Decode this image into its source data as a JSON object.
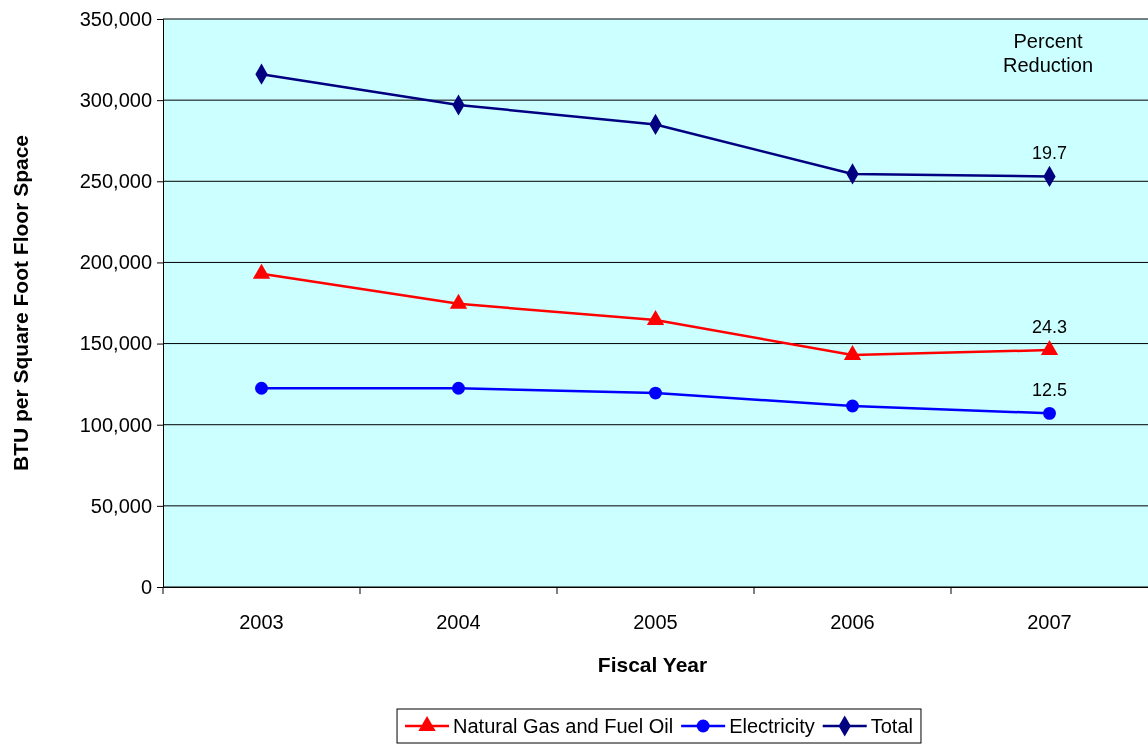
{
  "chart_data": {
    "type": "line",
    "xlabel": "Fiscal Year",
    "ylabel": "BTU per Square Foot Floor Space",
    "categories": [
      "2003",
      "2004",
      "2005",
      "2006",
      "2007"
    ],
    "series": [
      {
        "name": "Natural Gas and Fuel Oil",
        "color": "#ff0000",
        "marker": "triangle",
        "values": [
          193000,
          174500,
          164500,
          143000,
          146000
        ]
      },
      {
        "name": "Electricity",
        "color": "#0000ff",
        "marker": "circle",
        "values": [
          122500,
          122500,
          119500,
          111500,
          107000
        ]
      },
      {
        "name": "Total",
        "color": "#000080",
        "marker": "diamond",
        "values": [
          316000,
          297000,
          285000,
          254500,
          253000
        ]
      }
    ],
    "ylim": [
      0,
      350000
    ],
    "yticks": [
      {
        "value": 0,
        "label": "0"
      },
      {
        "value": 50000,
        "label": "50,000"
      },
      {
        "value": 100000,
        "label": "100,000"
      },
      {
        "value": 150000,
        "label": "150,000"
      },
      {
        "value": 200000,
        "label": "200,000"
      },
      {
        "value": 250000,
        "label": "250,000"
      },
      {
        "value": 300000,
        "label": "300,000"
      },
      {
        "value": 350000,
        "label": "350,000"
      }
    ],
    "grid": "y",
    "legend": "bottom",
    "line_style": "solid",
    "annotations": [
      "Percent Reduction",
      {
        "text": "19.7",
        "x": "2007",
        "y": 253000
      },
      {
        "text": "24.3",
        "x": "2007",
        "y": 146000
      },
      {
        "text": "12.5",
        "x": "2007",
        "y": 107000
      }
    ]
  }
}
